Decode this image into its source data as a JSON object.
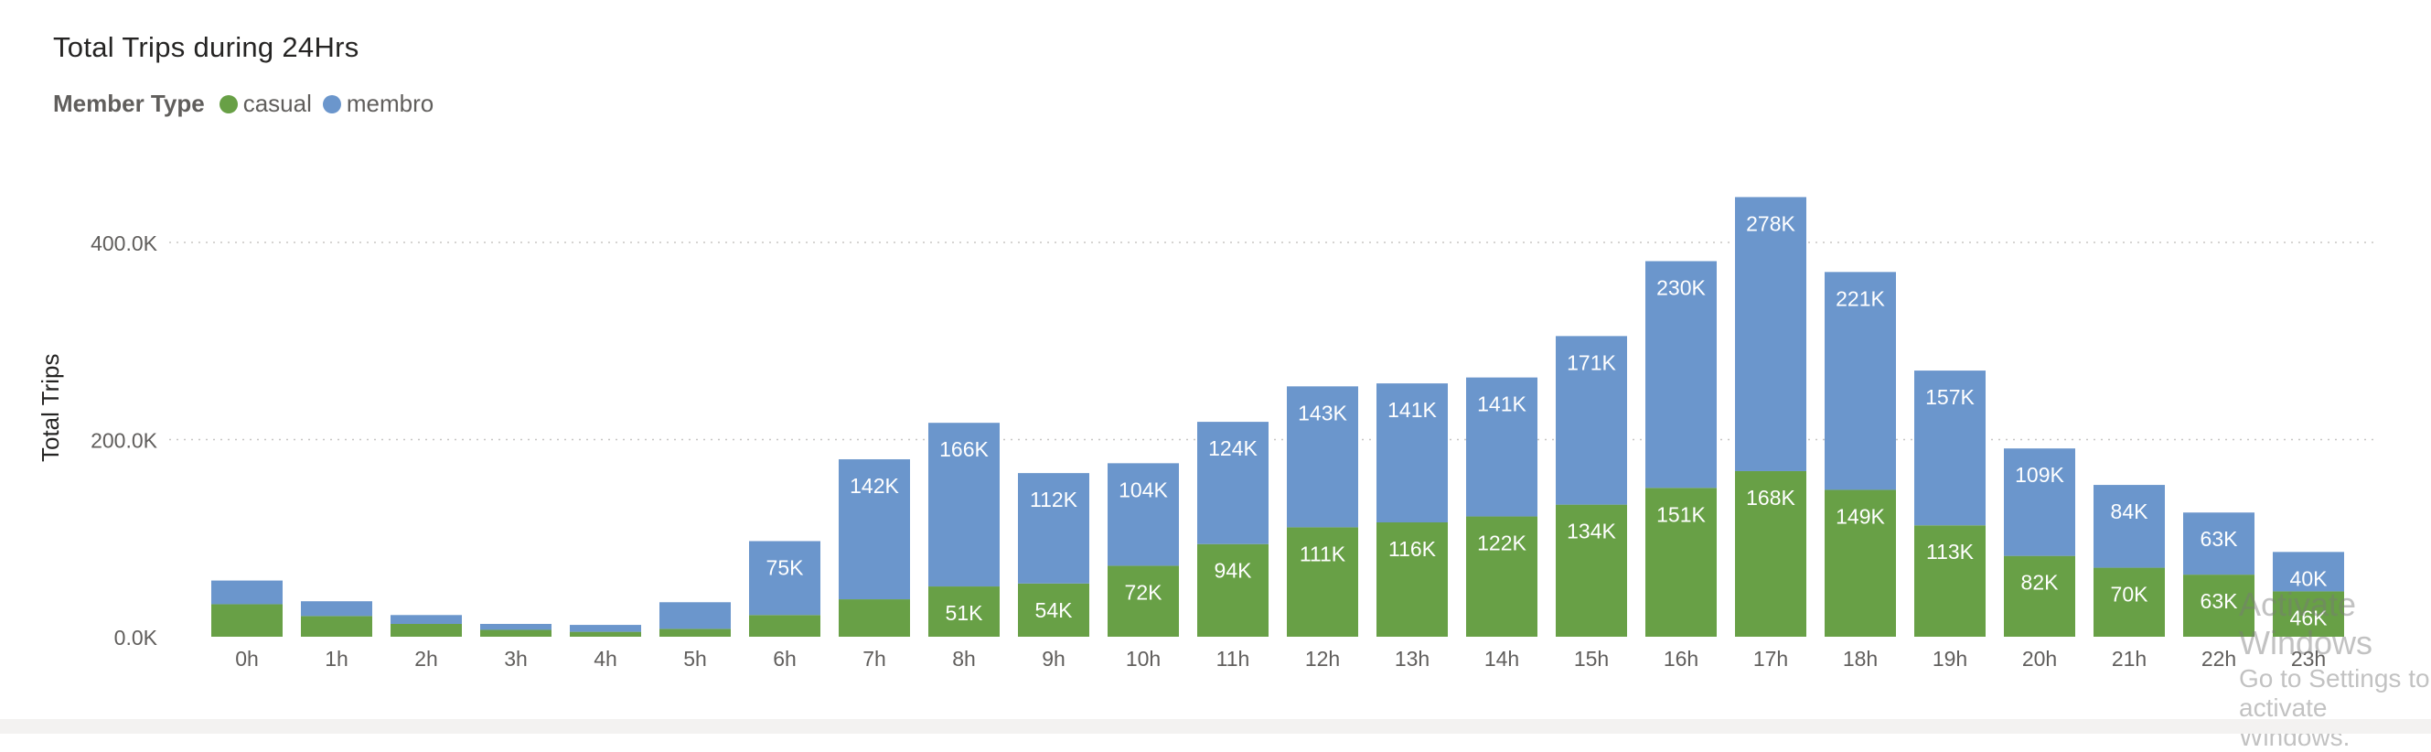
{
  "title": "Total Trips during 24Hrs",
  "legend": {
    "title": "Member Type",
    "items": [
      {
        "label": "casual",
        "color": "#68a046"
      },
      {
        "label": "membro",
        "color": "#6b96cc"
      }
    ]
  },
  "watermark": {
    "line1": "Activate Windows",
    "line2": "Go to Settings to activate Windows."
  },
  "chart_data": {
    "type": "bar",
    "stacked": true,
    "title": "Total Trips during 24Hrs",
    "xlabel": "",
    "ylabel": "Total Trips",
    "ylim": [
      0,
      450000
    ],
    "yticks": [
      0,
      200000,
      400000
    ],
    "ytick_labels": [
      "0.0K",
      "200.0K",
      "400.0K"
    ],
    "grid": true,
    "legend_position": "top-left",
    "categories": [
      "0h",
      "1h",
      "2h",
      "3h",
      "4h",
      "5h",
      "6h",
      "7h",
      "8h",
      "9h",
      "10h",
      "11h",
      "12h",
      "13h",
      "14h",
      "15h",
      "16h",
      "17h",
      "18h",
      "19h",
      "20h",
      "21h",
      "22h",
      "23h"
    ],
    "series": [
      {
        "name": "casual",
        "color": "#68a046",
        "values": [
          33000,
          21000,
          13000,
          7000,
          5000,
          8000,
          22000,
          38000,
          51000,
          54000,
          72000,
          94000,
          111000,
          116000,
          122000,
          134000,
          151000,
          168000,
          149000,
          113000,
          82000,
          70000,
          63000,
          46000
        ],
        "labels": [
          "",
          "",
          "",
          "",
          "",
          "",
          "",
          "",
          "51K",
          "54K",
          "72K",
          "94K",
          "111K",
          "116K",
          "122K",
          "134K",
          "151K",
          "168K",
          "149K",
          "113K",
          "82K",
          "70K",
          "63K",
          "46K"
        ]
      },
      {
        "name": "membro",
        "color": "#6b96cc",
        "values": [
          24000,
          15000,
          9000,
          6000,
          7000,
          27000,
          75000,
          142000,
          166000,
          112000,
          104000,
          124000,
          143000,
          141000,
          141000,
          171000,
          230000,
          278000,
          221000,
          157000,
          109000,
          84000,
          63000,
          40000
        ],
        "labels": [
          "",
          "",
          "",
          "",
          "",
          "",
          "75K",
          "142K",
          "166K",
          "112K",
          "104K",
          "124K",
          "143K",
          "141K",
          "141K",
          "171K",
          "230K",
          "278K",
          "221K",
          "157K",
          "109K",
          "84K",
          "63K",
          "40K"
        ]
      }
    ]
  }
}
